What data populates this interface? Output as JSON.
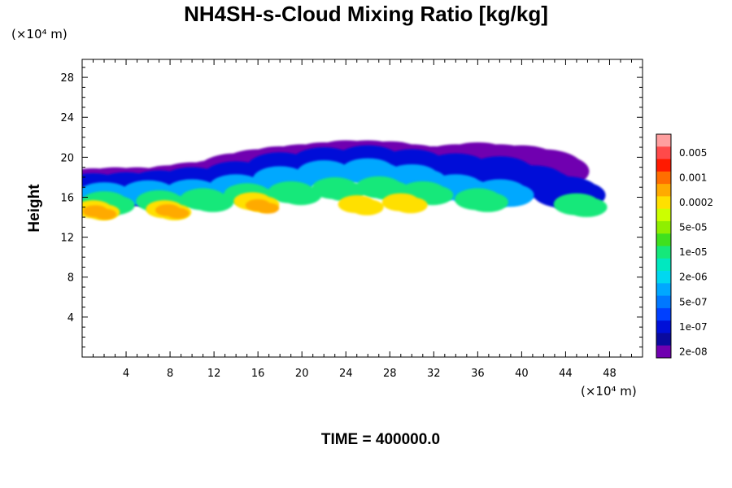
{
  "title": "NH4SH-s-Cloud Mixing Ratio [kg/kg]",
  "time_label": "TIME = 400000.0",
  "chart_data": {
    "type": "contour",
    "title": "NH4SH-s-Cloud Mixing Ratio [kg/kg]",
    "ylabel": "Height",
    "xlabel": "",
    "x_unit": "(×10⁴ m)",
    "y_unit": "(×10⁴ m)",
    "xlim": [
      0,
      51
    ],
    "ylim": [
      0,
      29.8
    ],
    "x_ticks": [
      4,
      8,
      12,
      16,
      20,
      24,
      28,
      32,
      36,
      40,
      44,
      48
    ],
    "y_ticks": [
      4,
      8,
      12,
      16,
      20,
      24,
      28
    ],
    "colorbar": {
      "labels": [
        "0.005",
        "0.001",
        "0.0002",
        "5e-05",
        "1e-05",
        "2e-06",
        "5e-07",
        "1e-07",
        "2e-08"
      ],
      "colors": [
        "#ff9f9f",
        "#ff4a4a",
        "#ff1a00",
        "#ff6e00",
        "#ffaa00",
        "#ffe000",
        "#ccff00",
        "#8fef00",
        "#3fe01e",
        "#15e87a",
        "#00e8c0",
        "#00d8f0",
        "#00a8ff",
        "#0078ff",
        "#0040ff",
        "#0010d8",
        "#0a0a9e",
        "#7000b0"
      ]
    },
    "cloud_layers": [
      {
        "level": 0,
        "color": "#7000b0",
        "cells": [
          [
            1,
            17.0
          ],
          [
            3,
            17.1
          ],
          [
            5,
            17.1
          ],
          [
            8,
            17.3
          ],
          [
            10,
            17.6
          ],
          [
            12,
            17.8
          ],
          [
            14,
            18.5
          ],
          [
            16,
            18.9
          ],
          [
            18,
            19.2
          ],
          [
            20,
            19.4
          ],
          [
            22,
            19.6
          ],
          [
            24,
            19.8
          ],
          [
            26,
            19.8
          ],
          [
            28,
            19.7
          ],
          [
            30,
            19.4
          ],
          [
            32,
            19.2
          ],
          [
            34,
            19.4
          ],
          [
            36,
            19.6
          ],
          [
            38,
            19.4
          ],
          [
            40,
            19.3
          ],
          [
            42,
            18.9
          ]
        ]
      },
      {
        "level": 1,
        "color": "#0010d8",
        "cells": [
          [
            1,
            16.8
          ],
          [
            4,
            16.9
          ],
          [
            7,
            17.1
          ],
          [
            10,
            17.4
          ],
          [
            14,
            18.0
          ],
          [
            18,
            18.9
          ],
          [
            22,
            19.4
          ],
          [
            26,
            19.6
          ],
          [
            30,
            19.2
          ],
          [
            34,
            18.8
          ],
          [
            38,
            18.5
          ],
          [
            41,
            17.6
          ],
          [
            44,
            16.5
          ]
        ]
      },
      {
        "level": 2,
        "color": "#00a8ff",
        "cells": [
          [
            2,
            16.2
          ],
          [
            6,
            16.4
          ],
          [
            10,
            16.5
          ],
          [
            14,
            17.0
          ],
          [
            18,
            17.8
          ],
          [
            22,
            18.4
          ],
          [
            26,
            18.6
          ],
          [
            30,
            18.0
          ],
          [
            34,
            17.0
          ],
          [
            38,
            16.5
          ]
        ]
      },
      {
        "level": 3,
        "color": "#15e87a",
        "cells": [
          [
            2,
            15.5
          ],
          [
            7,
            15.6
          ],
          [
            11,
            15.8
          ],
          [
            15,
            16.3
          ],
          [
            19,
            16.5
          ],
          [
            23,
            16.9
          ],
          [
            27,
            17.0
          ],
          [
            31,
            16.5
          ],
          [
            36,
            15.8
          ],
          [
            45,
            15.3
          ]
        ]
      },
      {
        "level": 4,
        "color": "#ffe000",
        "cells": [
          [
            1,
            14.8
          ],
          [
            7.5,
            14.8
          ],
          [
            15.5,
            15.6
          ],
          [
            25,
            15.3
          ],
          [
            29,
            15.5
          ]
        ]
      },
      {
        "level": 5,
        "color": "#ffaa00",
        "cells": [
          [
            1.2,
            14.6
          ],
          [
            7.8,
            14.7
          ],
          [
            16,
            15.2
          ]
        ]
      }
    ]
  }
}
